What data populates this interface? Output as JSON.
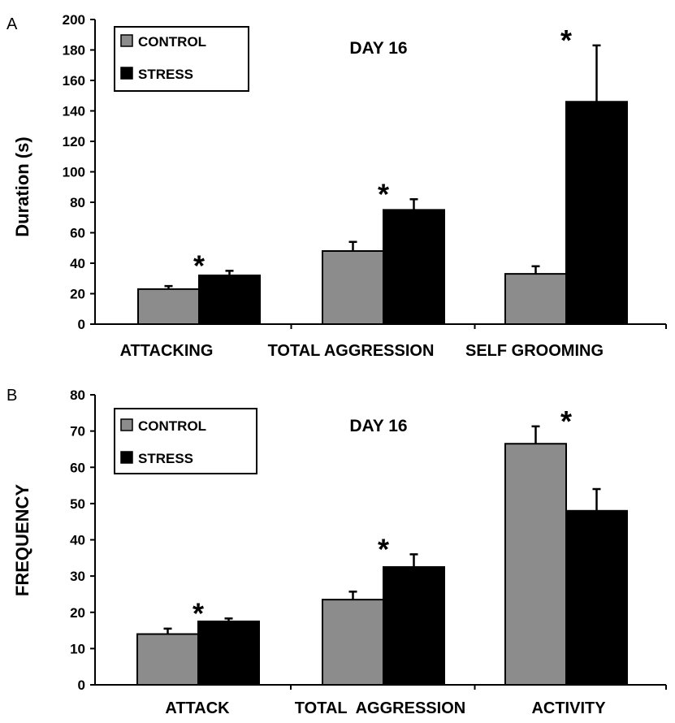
{
  "colors": {
    "control": "#8c8c8c",
    "stress": "#000000",
    "axis": "#000000"
  },
  "chart_data": [
    {
      "type": "bar",
      "panel": "A",
      "title": "DAY 16",
      "xlabel": "",
      "ylabel": "Duration (s)",
      "ylim": [
        0,
        200
      ],
      "yticks": [
        "0",
        "20",
        "40",
        "60",
        "80",
        "100",
        "120",
        "140",
        "160",
        "180",
        "200"
      ],
      "categories": [
        "ATTACKING",
        "TOTAL AGGRESSION",
        "SELF GROOMING"
      ],
      "series": [
        {
          "name": "CONTROL",
          "values": [
            23,
            48,
            33
          ],
          "errors": [
            2,
            6,
            5
          ]
        },
        {
          "name": "STRESS",
          "values": [
            32,
            75,
            146
          ],
          "errors": [
            3,
            7,
            37
          ]
        }
      ],
      "significance": [
        "*",
        "*",
        "*"
      ],
      "legend_position": "top-left",
      "grid": false
    },
    {
      "type": "bar",
      "panel": "B",
      "title": "DAY 16",
      "xlabel": "",
      "ylabel": "FREQUENCY",
      "ylim": [
        0,
        80
      ],
      "yticks": [
        "0",
        "10",
        "20",
        "30",
        "40",
        "50",
        "60",
        "70",
        "80"
      ],
      "categories": [
        "ATTACK",
        "TOTAL  AGGRESSION",
        "ACTIVITY"
      ],
      "series": [
        {
          "name": "CONTROL",
          "values": [
            14,
            23.5,
            66.5
          ],
          "errors": [
            1.5,
            2.2,
            4.8
          ]
        },
        {
          "name": "STRESS",
          "values": [
            17.5,
            32.5,
            48
          ],
          "errors": [
            0.8,
            3.5,
            6
          ]
        }
      ],
      "significance": [
        "*",
        "*",
        "*"
      ],
      "legend_position": "top-left",
      "grid": false
    }
  ]
}
